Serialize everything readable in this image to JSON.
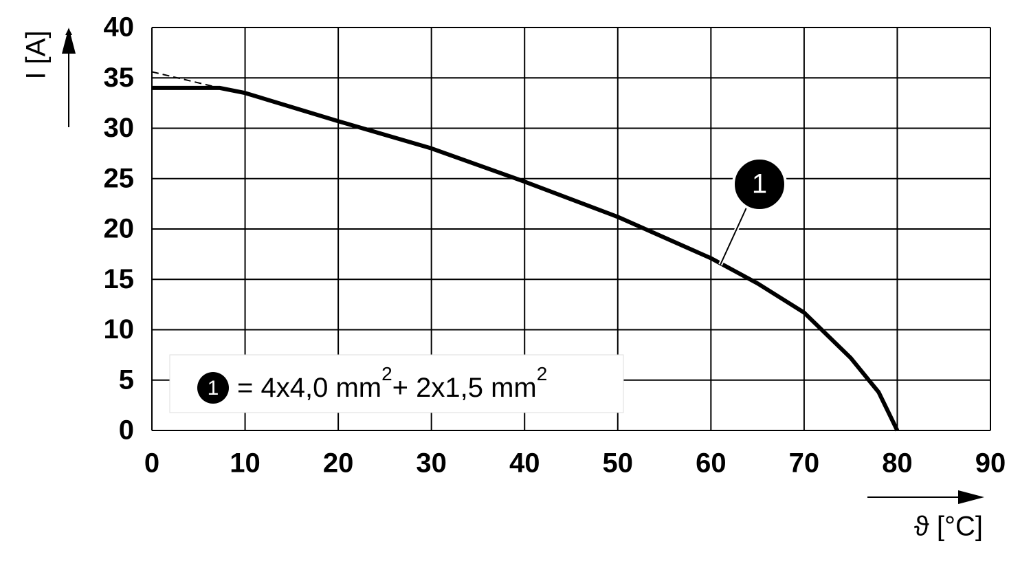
{
  "chart_data": {
    "type": "line",
    "ylabel": "I [A]",
    "xlabel": "ϑ [°C]",
    "xlim": [
      0,
      90
    ],
    "xticks": [
      0,
      10,
      20,
      30,
      40,
      50,
      60,
      70,
      80,
      90
    ],
    "ylim": [
      0,
      40
    ],
    "yticks": [
      0,
      5,
      10,
      15,
      20,
      25,
      30,
      35,
      40
    ],
    "grid": true,
    "series": [
      {
        "color": "#000000",
        "x": [
          0,
          7.3,
          10,
          20,
          30,
          40,
          50,
          60,
          65,
          70,
          75,
          78,
          80
        ],
        "values": [
          34,
          34,
          33.5,
          30.7,
          28.0,
          24.7,
          21.2,
          17.1,
          14.6,
          11.7,
          7.2,
          3.8,
          0
        ]
      },
      {
        "color": "#000000",
        "dashed": true,
        "x": [
          0,
          7.3
        ],
        "values": [
          35.6,
          34
        ]
      }
    ],
    "callout": "1",
    "legend": {
      "marker": "1",
      "parts": [
        "= 4x4,0 mm",
        "2",
        "+ 2x1,5 mm",
        "2"
      ]
    }
  }
}
